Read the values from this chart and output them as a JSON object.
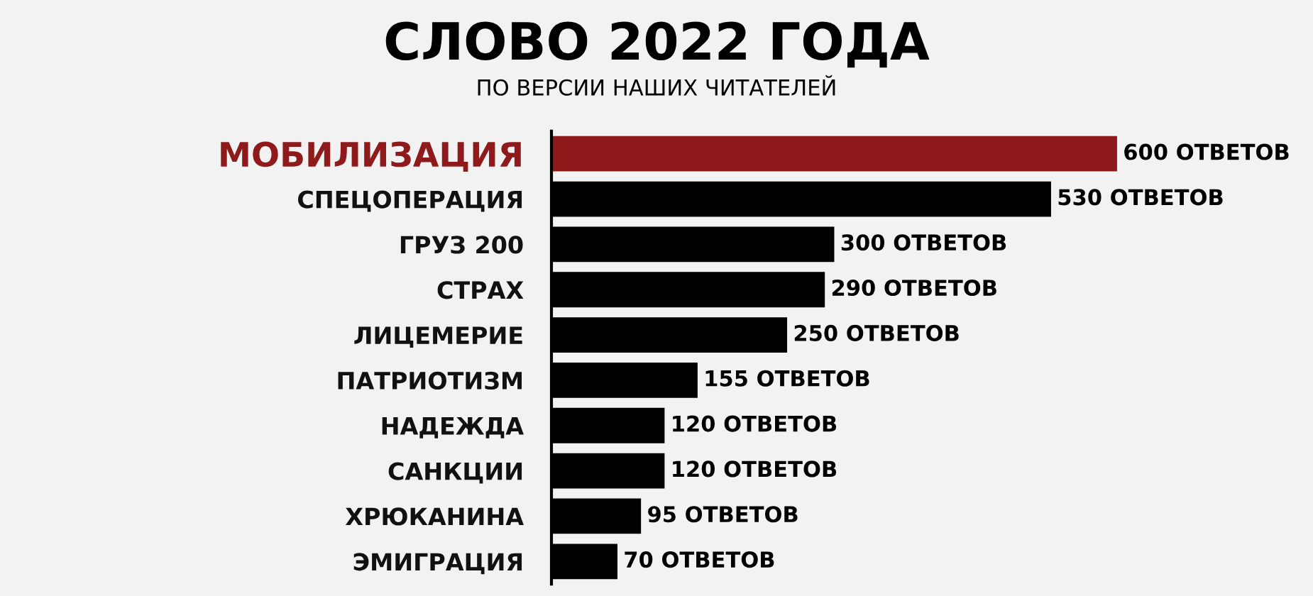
{
  "chart_data": {
    "type": "bar",
    "orientation": "horizontal",
    "title": "СЛОВО 2022 ГОДА",
    "subtitle": "ПО ВЕРСИИ НАШИХ ЧИТАТЕЛЕЙ",
    "categories": [
      "МОБИЛИЗАЦИЯ",
      "СПЕЦОПЕРАЦИЯ",
      "ГРУЗ 200",
      "СТРАХ",
      "ЛИЦЕМЕРИЕ",
      "ПАТРИОТИЗМ",
      "НАДЕЖДА",
      "САНКЦИИ",
      "ХРЮКАНИНА",
      "ЭМИГРАЦИЯ"
    ],
    "values": [
      600,
      530,
      300,
      290,
      250,
      155,
      120,
      120,
      95,
      70
    ],
    "colors": [
      "#8e1a1c",
      "#000000",
      "#000000",
      "#000000",
      "#000000",
      "#000000",
      "#000000",
      "#000000",
      "#000000",
      "#000000"
    ],
    "value_labels": [
      "600 ОТВЕТОВ",
      "530 ОТВЕТОВ",
      "300 ОТВЕТОВ",
      "290 ОТВЕТОВ",
      "250 ОТВЕТОВ",
      "155 ОТВЕТОВ",
      "120 ОТВЕТОВ",
      "120 ОТВЕТОВ",
      "95 ОТВЕТОВ",
      "70 ОТВЕТОВ"
    ],
    "grid": false,
    "legend": false
  }
}
